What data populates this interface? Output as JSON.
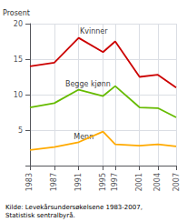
{
  "chart_data": {
    "type": "line",
    "x": [
      1983,
      1987,
      1991,
      1995,
      1997,
      2001,
      2004,
      2007
    ],
    "series": [
      {
        "color": "#cc0000",
        "values": [
          14.0,
          14.5,
          18.0,
          16.0,
          17.5,
          12.5,
          12.8,
          11.0
        ]
      },
      {
        "color": "#66bb00",
        "values": [
          8.2,
          8.8,
          10.7,
          9.8,
          11.2,
          8.2,
          8.1,
          6.8
        ]
      },
      {
        "color": "#ffaa00",
        "values": [
          2.2,
          2.6,
          3.3,
          4.8,
          3.0,
          2.8,
          3.0,
          2.7
        ]
      }
    ],
    "annotations": [
      {
        "text": "Kvinner",
        "x": 1991.2,
        "y": 18.4
      },
      {
        "text": "Begge kjønn",
        "x": 1988.8,
        "y": 10.9
      },
      {
        "text": "Menn",
        "x": 1990.2,
        "y": 3.55
      }
    ],
    "ylabel": "Prosent",
    "source": "Kilde: Levekårsundersøkelsene 1983-2007,\nStatistisk sentralbyrå.",
    "xlim": [
      1983,
      2007
    ],
    "xticks": [
      1983,
      1987,
      1991,
      1995,
      1997,
      2001,
      2004,
      2007
    ],
    "ylim": [
      0,
      20
    ],
    "yticks": [
      {
        "value": 0,
        "label": null
      },
      5,
      10,
      15,
      20
    ],
    "grid": true
  }
}
